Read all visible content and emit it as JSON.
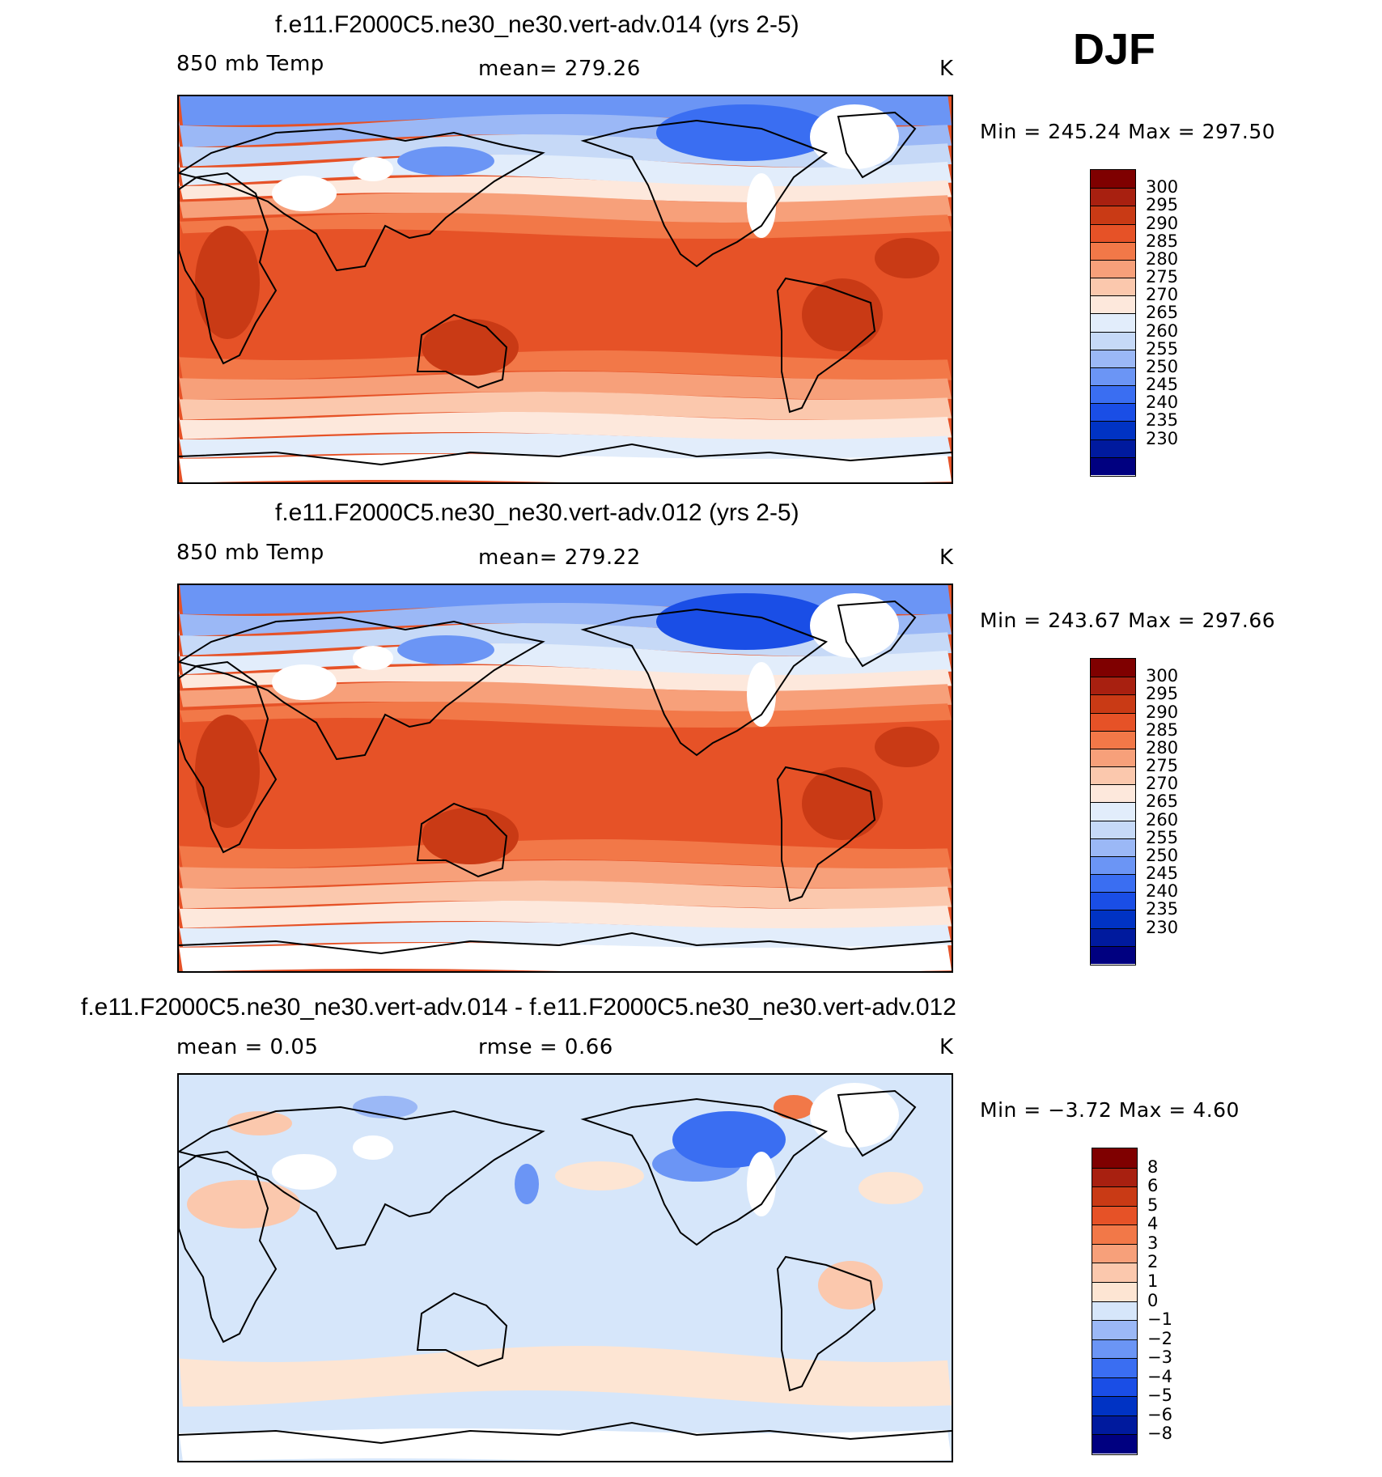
{
  "season": "DJF",
  "panels": [
    {
      "title": "f.e11.F2000C5.ne30_ne30.vert-adv.014 (yrs 2-5)",
      "left_label": "850 mb Temp",
      "center_label": "mean=  279.26",
      "units": "K",
      "minmax": "Min  =  245.24  Max  =  297.50",
      "colorbar": [
        "300",
        "295",
        "290",
        "285",
        "280",
        "275",
        "270",
        "265",
        "260",
        "255",
        "250",
        "245",
        "240",
        "235",
        "230"
      ],
      "variant": "abs1"
    },
    {
      "title": "f.e11.F2000C5.ne30_ne30.vert-adv.012 (yrs 2-5)",
      "left_label": "850 mb Temp",
      "center_label": "mean=  279.22",
      "units": "K",
      "minmax": "Min  =  243.67  Max  =  297.66",
      "colorbar": [
        "300",
        "295",
        "290",
        "285",
        "280",
        "275",
        "270",
        "265",
        "260",
        "255",
        "250",
        "245",
        "240",
        "235",
        "230"
      ],
      "variant": "abs2"
    },
    {
      "title": "f.e11.F2000C5.ne30_ne30.vert-adv.014 - f.e11.F2000C5.ne30_ne30.vert-adv.012",
      "left_label": "mean =     0.05",
      "center_label": "rmse =     0.66",
      "units": "K",
      "minmax": "Min  =     −3.72  Max  =      4.60",
      "colorbar": [
        "8",
        "6",
        "5",
        "4",
        "3",
        "2",
        "1",
        "0",
        "−1",
        "−2",
        "−3",
        "−4",
        "−5",
        "−6",
        "−8"
      ],
      "variant": "diff"
    }
  ],
  "colors": {
    "palette": [
      "#000080",
      "#001a9e",
      "#0033c4",
      "#1a4ee6",
      "#3a6ef2",
      "#6b95f5",
      "#9bb8f6",
      "#c6d9f7",
      "#e2edfb",
      "#fde8dc",
      "#fbc8ad",
      "#f7a07a",
      "#f27848",
      "#e65227",
      "#c93a15",
      "#a82010",
      "#7f0000"
    ],
    "diff_palette": [
      "#000080",
      "#001a9e",
      "#0033c4",
      "#1a4ee6",
      "#3a6ef2",
      "#6b95f5",
      "#9bb8f6",
      "#d6e6fa",
      "#fde5d3",
      "#fbc8ad",
      "#f7a07a",
      "#f27848",
      "#e65227",
      "#c93a15",
      "#a82010",
      "#7f0000"
    ]
  },
  "chart_data": [
    {
      "type": "heatmap",
      "title": "f.e11.F2000C5.ne30_ne30.vert-adv.014 (yrs 2-5)",
      "variable": "850 mb Temp",
      "units": "K",
      "mean": 279.26,
      "min": 245.24,
      "max": 297.5,
      "contour_levels": [
        230,
        235,
        240,
        245,
        250,
        255,
        260,
        265,
        270,
        275,
        280,
        285,
        290,
        295,
        300
      ]
    },
    {
      "type": "heatmap",
      "title": "f.e11.F2000C5.ne30_ne30.vert-adv.012 (yrs 2-5)",
      "variable": "850 mb Temp",
      "units": "K",
      "mean": 279.22,
      "min": 243.67,
      "max": 297.66,
      "contour_levels": [
        230,
        235,
        240,
        245,
        250,
        255,
        260,
        265,
        270,
        275,
        280,
        285,
        290,
        295,
        300
      ]
    },
    {
      "type": "heatmap",
      "title": "f.e11.F2000C5.ne30_ne30.vert-adv.014 - f.e11.F2000C5.ne30_ne30.vert-adv.012",
      "units": "K",
      "mean": 0.05,
      "rmse": 0.66,
      "min": -3.72,
      "max": 4.6,
      "contour_levels": [
        -8,
        -6,
        -5,
        -4,
        -3,
        -2,
        -1,
        0,
        1,
        2,
        3,
        4,
        5,
        6,
        8
      ]
    }
  ]
}
